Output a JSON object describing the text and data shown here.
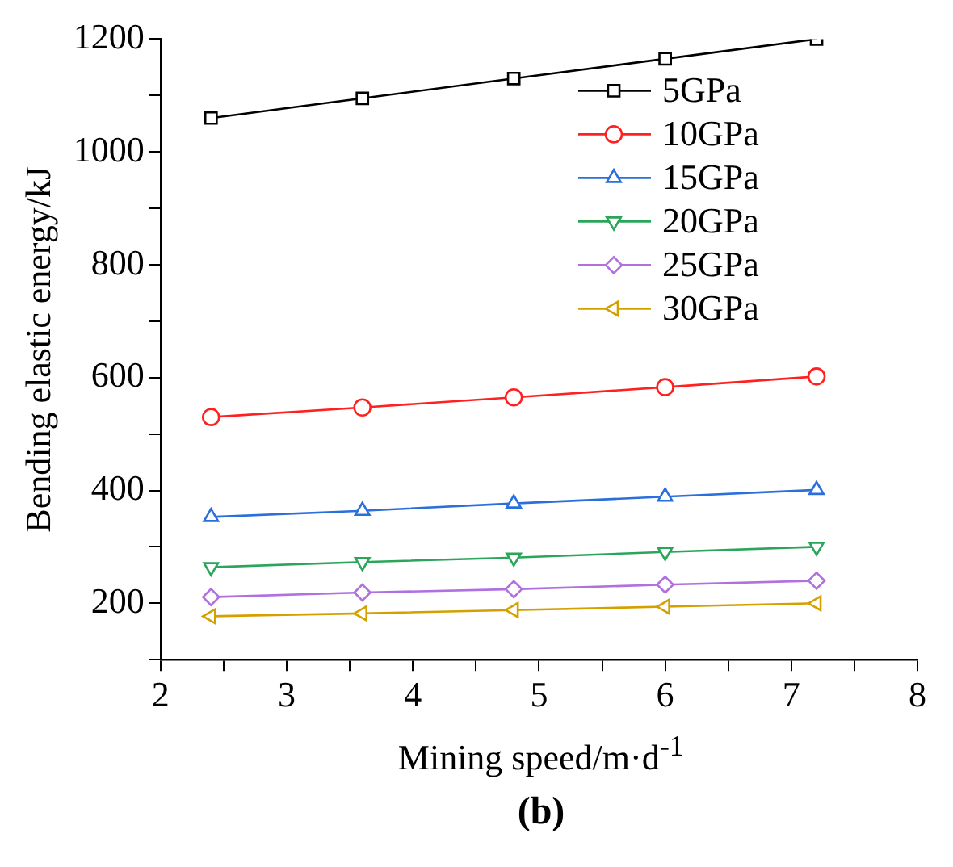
{
  "chart_data": {
    "type": "line",
    "xlabel": "Mining speed/m·d$^{-1}$",
    "ylabel": "Bending elastic energy/kJ",
    "x": [
      2.4,
      3.6,
      4.8,
      6.0,
      7.2
    ],
    "series": [
      {
        "name": "5GPa",
        "color": "#000000",
        "marker": "square",
        "values": [
          1060,
          1095,
          1130,
          1165,
          1200
        ]
      },
      {
        "name": "10GPa",
        "color": "#ff2020",
        "marker": "circle",
        "values": [
          530,
          547,
          565,
          583,
          602
        ]
      },
      {
        "name": "15GPa",
        "color": "#2a6fdb",
        "marker": "triangle",
        "values": [
          353,
          364,
          377,
          389,
          401
        ]
      },
      {
        "name": "20GPa",
        "color": "#2aa65a",
        "marker": "triangle-down",
        "values": [
          264,
          273,
          281,
          291,
          300
        ]
      },
      {
        "name": "25GPa",
        "color": "#b070e0",
        "marker": "diamond",
        "values": [
          211,
          219,
          225,
          233,
          240
        ]
      },
      {
        "name": "30GPa",
        "color": "#d4a000",
        "marker": "triangle-left",
        "values": [
          177,
          182,
          188,
          194,
          200
        ]
      }
    ],
    "xlim": [
      2,
      8
    ],
    "xticks": [
      2,
      {
        "value": 2.5,
        "label": null
      },
      3,
      {
        "value": 3.5,
        "label": null
      },
      4,
      {
        "value": 4.5,
        "label": null
      },
      5,
      {
        "value": 5.5,
        "label": null
      },
      6,
      {
        "value": 6.5,
        "label": null
      },
      7,
      {
        "value": 7.5,
        "label": null
      },
      8
    ],
    "ylim": [
      100,
      1200
    ],
    "yticks": [
      {
        "value": 100,
        "label": null
      },
      200,
      {
        "value": 300,
        "label": null
      },
      400,
      {
        "value": 500,
        "label": null
      },
      600,
      {
        "value": 700,
        "label": null
      },
      800,
      {
        "value": 900,
        "label": null
      },
      1000,
      {
        "value": 1100,
        "label": null
      },
      1200
    ],
    "grid": false,
    "legend": "top right",
    "line_style": "solid",
    "annotations": [
      "(b)"
    ]
  }
}
